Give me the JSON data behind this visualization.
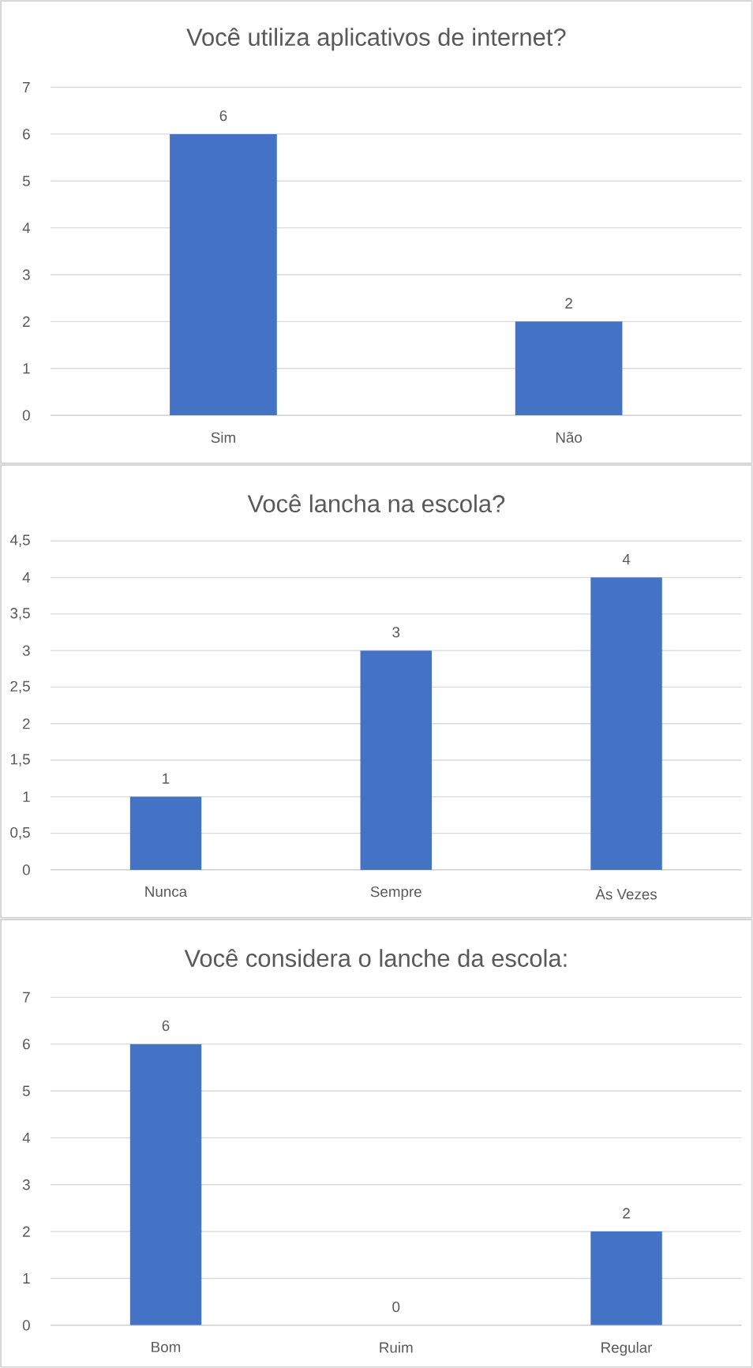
{
  "chart_data": [
    {
      "type": "bar",
      "title": "Você utiliza aplicativos de internet?",
      "categories": [
        "Sim",
        "Não"
      ],
      "values": [
        6,
        2
      ],
      "color": "#4472c4",
      "ylim": [
        0,
        7
      ],
      "yticks": [
        0,
        1,
        2,
        3,
        4,
        5,
        6,
        7
      ],
      "grid": "y",
      "data_labels": true
    },
    {
      "type": "bar",
      "title": "Você lancha na escola?",
      "categories": [
        "Nunca",
        "Sempre",
        "Às Vezes"
      ],
      "values": [
        1,
        3,
        4
      ],
      "color": "#4472c4",
      "ylim": [
        0,
        4.5
      ],
      "yticks": [
        0,
        {
          "value": 0.5,
          "label": "0,5"
        },
        1,
        {
          "value": 1.5,
          "label": "1,5"
        },
        2,
        {
          "value": 2.5,
          "label": "2,5"
        },
        3,
        {
          "value": 3.5,
          "label": "3,5"
        },
        4,
        {
          "value": 4.5,
          "label": "4,5"
        }
      ],
      "grid": "y",
      "data_labels": true
    },
    {
      "type": "bar",
      "title": "Você considera o lanche da escola:",
      "categories": [
        "Bom",
        "Ruim",
        "Regular"
      ],
      "values": [
        6,
        0,
        2
      ],
      "color": "#4472c4",
      "ylim": [
        0,
        7
      ],
      "yticks": [
        0,
        1,
        2,
        3,
        4,
        5,
        6,
        7
      ],
      "grid": "y",
      "data_labels": true
    }
  ]
}
